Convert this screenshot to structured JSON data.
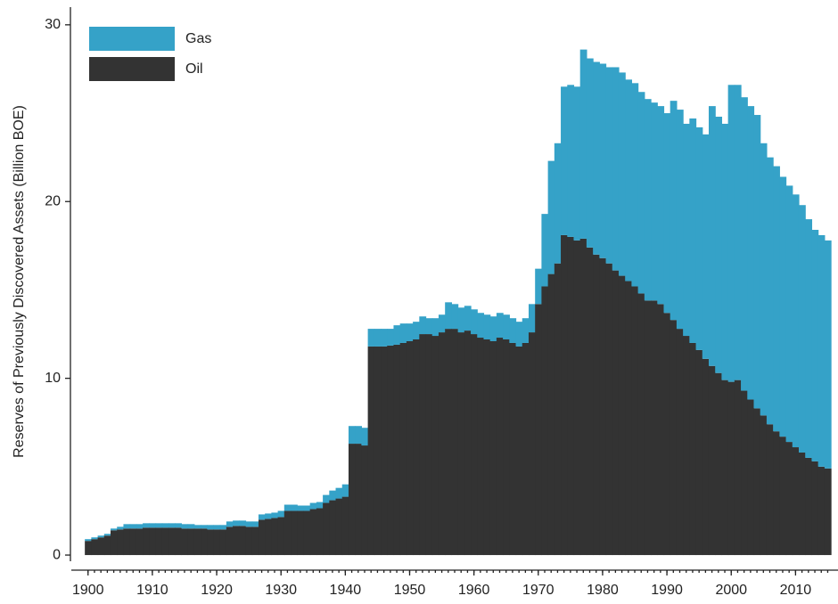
{
  "chart_data": {
    "type": "stacked_bar",
    "y_label": "Reserves of Previously Discovered Assets (Billion BOE)",
    "x": [
      1900,
      1901,
      1902,
      1903,
      1904,
      1905,
      1906,
      1907,
      1908,
      1909,
      1910,
      1911,
      1912,
      1913,
      1914,
      1915,
      1916,
      1917,
      1918,
      1919,
      1920,
      1921,
      1922,
      1923,
      1924,
      1925,
      1926,
      1927,
      1928,
      1929,
      1930,
      1931,
      1932,
      1933,
      1934,
      1935,
      1936,
      1937,
      1938,
      1939,
      1940,
      1941,
      1942,
      1943,
      1944,
      1945,
      1946,
      1947,
      1948,
      1949,
      1950,
      1951,
      1952,
      1953,
      1954,
      1955,
      1956,
      1957,
      1958,
      1959,
      1960,
      1961,
      1962,
      1963,
      1964,
      1965,
      1966,
      1967,
      1968,
      1969,
      1970,
      1971,
      1972,
      1973,
      1974,
      1975,
      1976,
      1977,
      1978,
      1979,
      1980,
      1981,
      1982,
      1983,
      1984,
      1985,
      1986,
      1987,
      1988,
      1989,
      1990,
      1991,
      1992,
      1993,
      1994,
      1995,
      1996,
      1997,
      1998,
      1999,
      2000,
      2001,
      2002,
      2003,
      2004,
      2005,
      2006,
      2007,
      2008,
      2009,
      2010,
      2011,
      2012,
      2013,
      2014,
      2015
    ],
    "series": [
      {
        "name": "Oil",
        "color": "#333333",
        "values": [
          0.8,
          0.9,
          1.0,
          1.1,
          1.4,
          1.45,
          1.5,
          1.5,
          1.5,
          1.55,
          1.55,
          1.55,
          1.55,
          1.55,
          1.55,
          1.5,
          1.5,
          1.5,
          1.5,
          1.45,
          1.45,
          1.45,
          1.6,
          1.65,
          1.65,
          1.6,
          1.6,
          2.0,
          2.05,
          2.1,
          2.15,
          2.5,
          2.5,
          2.5,
          2.5,
          2.6,
          2.65,
          2.95,
          3.1,
          3.2,
          3.3,
          6.3,
          6.3,
          6.2,
          11.8,
          11.8,
          11.8,
          11.85,
          11.9,
          12.0,
          12.1,
          12.2,
          12.5,
          12.5,
          12.4,
          12.6,
          12.8,
          12.8,
          12.6,
          12.7,
          12.5,
          12.3,
          12.2,
          12.1,
          12.3,
          12.2,
          12.0,
          11.8,
          12.0,
          12.6,
          14.2,
          15.2,
          15.9,
          16.5,
          18.1,
          18.0,
          17.8,
          17.9,
          17.4,
          17.0,
          16.8,
          16.5,
          16.1,
          15.8,
          15.5,
          15.2,
          14.8,
          14.4,
          14.4,
          14.2,
          13.7,
          13.3,
          12.8,
          12.4,
          12.0,
          11.6,
          11.1,
          10.7,
          10.3,
          9.9,
          9.8,
          9.9,
          9.3,
          8.8,
          8.3,
          7.9,
          7.4,
          7.0,
          6.7,
          6.4,
          6.1,
          5.8,
          5.5,
          5.3,
          5.0,
          4.9
        ]
      },
      {
        "name": "Gas",
        "color": "#35a2c8",
        "values": [
          0.1,
          0.1,
          0.1,
          0.1,
          0.1,
          0.15,
          0.25,
          0.25,
          0.25,
          0.25,
          0.25,
          0.25,
          0.25,
          0.25,
          0.25,
          0.25,
          0.25,
          0.2,
          0.2,
          0.25,
          0.25,
          0.25,
          0.3,
          0.3,
          0.3,
          0.3,
          0.3,
          0.3,
          0.3,
          0.3,
          0.35,
          0.35,
          0.35,
          0.3,
          0.3,
          0.35,
          0.35,
          0.45,
          0.55,
          0.6,
          0.7,
          1.0,
          1.0,
          1.0,
          1.0,
          1.0,
          1.0,
          0.95,
          1.1,
          1.1,
          1.0,
          1.0,
          1.0,
          0.9,
          1.0,
          1.0,
          1.5,
          1.4,
          1.4,
          1.4,
          1.4,
          1.4,
          1.4,
          1.4,
          1.4,
          1.4,
          1.4,
          1.4,
          1.4,
          1.6,
          2.0,
          4.1,
          6.4,
          6.8,
          8.4,
          8.6,
          8.7,
          10.7,
          10.7,
          10.9,
          11.0,
          11.1,
          11.5,
          11.5,
          11.4,
          11.5,
          11.4,
          11.4,
          11.2,
          11.2,
          11.3,
          12.4,
          12.4,
          12.0,
          12.7,
          12.6,
          12.7,
          14.7,
          14.5,
          14.5,
          16.8,
          16.7,
          16.6,
          16.6,
          16.6,
          15.4,
          15.1,
          15.0,
          14.7,
          14.5,
          14.3,
          14.0,
          13.5,
          13.1,
          13.1,
          12.9
        ]
      }
    ],
    "xlim": [
      1897.4,
      2016.6
    ],
    "xticks": [
      1900,
      1910,
      1920,
      1930,
      1940,
      1950,
      1960,
      1970,
      1980,
      1990,
      2000,
      2010
    ],
    "ylim": [
      -0.35,
      31
    ],
    "yticks": [
      0,
      10,
      20,
      30
    ],
    "legend": "upper left",
    "grid": false
  }
}
